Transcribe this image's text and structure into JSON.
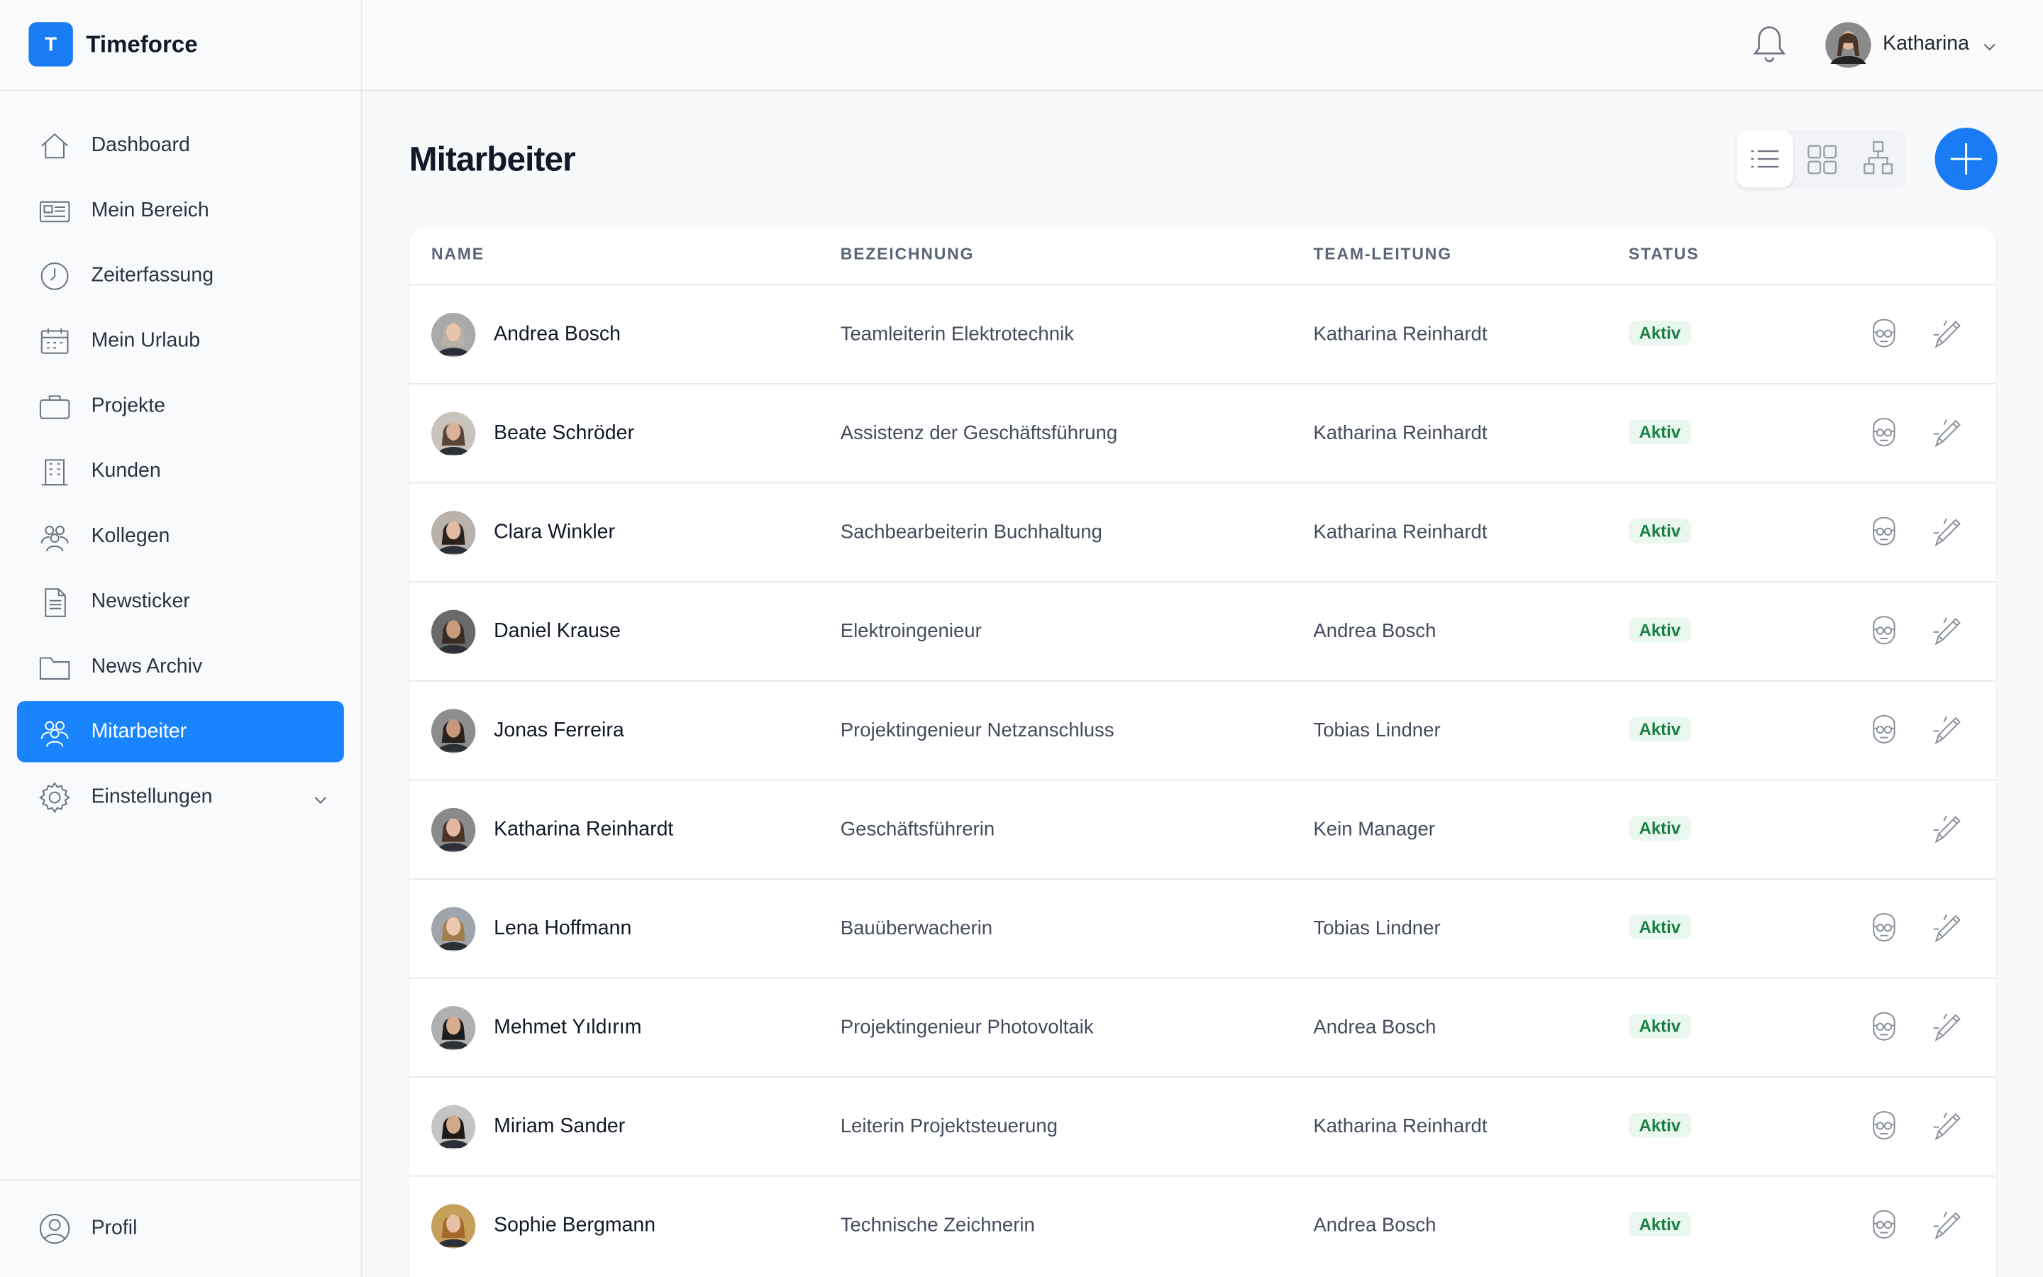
{
  "app_name": "Timeforce",
  "logo_letter": "T",
  "user_name": "Katharina",
  "nav": [
    "Dashboard",
    "Mein Bereich",
    "Zeiterfassung",
    "Mein Urlaub",
    "Projekte",
    "Kunden",
    "Kollegen",
    "Newsticker",
    "News Archiv",
    "Mitarbeiter",
    "Einstellungen"
  ],
  "nav_bottom": "Profil",
  "page_title": "Mitarbeiter",
  "table": {
    "headers": [
      "NAME",
      "BEZEICHNUNG",
      "TEAM-LEITUNG",
      "STATUS"
    ],
    "rows": [
      [
        "Andrea Bosch",
        "Teamleiterin Elektrotechnik",
        "Katharina Reinhardt",
        "Aktiv"
      ],
      [
        "Beate Schröder",
        "Assistenz der Geschäftsführung",
        "Katharina Reinhardt",
        "Aktiv"
      ],
      [
        "Clara Winkler",
        "Sachbearbeiterin Buchhaltung",
        "Katharina Reinhardt",
        "Aktiv"
      ],
      [
        "Daniel Krause",
        "Elektroingenieur",
        "Andrea Bosch",
        "Aktiv"
      ],
      [
        "Jonas Ferreira",
        "Projektingenieur Netzanschluss",
        "Tobias Lindner",
        "Aktiv"
      ],
      [
        "Katharina Reinhardt",
        "Geschäftsführerin",
        "Kein Manager",
        "Aktiv"
      ],
      [
        "Lena Hoffmann",
        "Bauüberwacherin",
        "Tobias Lindner",
        "Aktiv"
      ],
      [
        "Mehmet Yıldırım",
        "Projektingenieur Photovoltaik",
        "Andrea Bosch",
        "Aktiv"
      ],
      [
        "Miriam Sander",
        "Leiterin Projektsteuerung",
        "Katharina Reinhardt",
        "Aktiv"
      ],
      [
        "Sophie Bergmann",
        "Technische Zeichnerin",
        "Andrea Bosch",
        "Aktiv"
      ]
    ]
  }
}
